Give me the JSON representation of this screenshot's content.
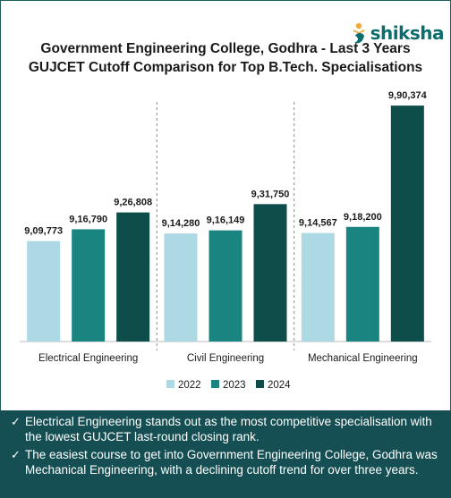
{
  "brand": {
    "name": "shiksha"
  },
  "chart_data": {
    "type": "bar",
    "title": "Government Engineering College, Godhra - Last 3 Years",
    "subtitle": "GUJCET Cutoff Comparison for Top B.Tech. Specialisations",
    "categories": [
      "Electrical Engineering",
      "Civil Engineering",
      "Mechanical Engineering"
    ],
    "series": [
      {
        "name": "2022",
        "color": "#acd9e4",
        "values": [
          909773,
          914280,
          914567
        ],
        "labels": [
          "9,09,773",
          "9,14,280",
          "9,14,567"
        ]
      },
      {
        "name": "2023",
        "color": "#1a8580",
        "values": [
          916790,
          916149,
          918200
        ],
        "labels": [
          "9,16,790",
          "9,16,149",
          "9,18,200"
        ]
      },
      {
        "name": "2024",
        "color": "#0d4d4a",
        "values": [
          926808,
          931750,
          990374
        ],
        "labels": [
          "9,26,808",
          "9,31,750",
          "9,90,374"
        ]
      }
    ],
    "ylim": [
      850000,
      1000000
    ],
    "grid": false,
    "legend": "bottom"
  },
  "notes": [
    {
      "icon": "check-icon",
      "text": "Electrical Engineering stands out as the most competitive specialisation with the lowest GUJCET last-round closing rank."
    },
    {
      "icon": "check-icon",
      "text": "The easiest course to get into Government Engineering College, Godhra was Mechanical Engineering, with a declining cutoff trend for over three years."
    }
  ]
}
